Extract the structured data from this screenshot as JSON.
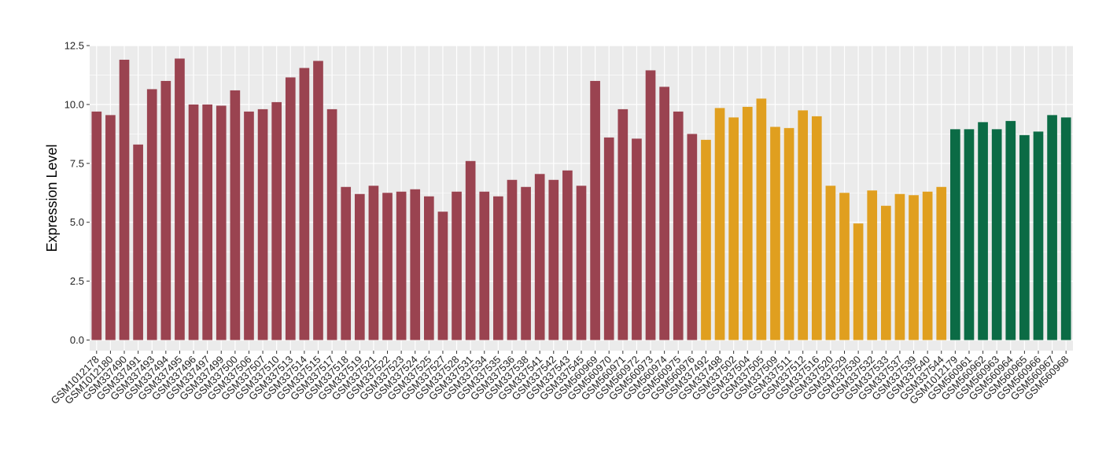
{
  "chart_data": {
    "type": "bar",
    "title": "",
    "xlabel": "",
    "ylabel": "Expression Level",
    "ylim": [
      0,
      12.5
    ],
    "yticks": [
      "0.0",
      "2.5",
      "5.0",
      "7.5",
      "10.0",
      "12.5"
    ],
    "grid": true,
    "legend": "none",
    "colors": {
      "group1": "#9a4350",
      "group2": "#e09f1f",
      "group3": "#0b6b45",
      "panel": "#ebebeb",
      "grid": "#ffffff"
    },
    "categories": [
      "GSM1012178",
      "GSM1012180",
      "GSM337490",
      "GSM337491",
      "GSM337493",
      "GSM337494",
      "GSM337495",
      "GSM337496",
      "GSM337497",
      "GSM337499",
      "GSM337500",
      "GSM337506",
      "GSM337507",
      "GSM337510",
      "GSM337513",
      "GSM337514",
      "GSM337515",
      "GSM337517",
      "GSM337518",
      "GSM337519",
      "GSM337521",
      "GSM337522",
      "GSM337523",
      "GSM337524",
      "GSM337525",
      "GSM337527",
      "GSM337528",
      "GSM337531",
      "GSM337534",
      "GSM337535",
      "GSM337536",
      "GSM337538",
      "GSM337541",
      "GSM337542",
      "GSM337543",
      "GSM337545",
      "GSM560969",
      "GSM560970",
      "GSM560971",
      "GSM560972",
      "GSM560973",
      "GSM560974",
      "GSM560975",
      "GSM560976",
      "GSM337492",
      "GSM337498",
      "GSM337502",
      "GSM337504",
      "GSM337505",
      "GSM337509",
      "GSM337511",
      "GSM337512",
      "GSM337516",
      "GSM337520",
      "GSM337529",
      "GSM337530",
      "GSM337532",
      "GSM337533",
      "GSM337537",
      "GSM337539",
      "GSM337540",
      "GSM337544",
      "GSM1012179",
      "GSM560961",
      "GSM560962",
      "GSM560963",
      "GSM560964",
      "GSM560965",
      "GSM560966",
      "GSM560967",
      "GSM560968"
    ],
    "values": [
      9.7,
      9.55,
      11.9,
      8.3,
      10.65,
      11.0,
      11.95,
      10.0,
      10.0,
      9.95,
      10.6,
      9.7,
      9.8,
      10.1,
      11.15,
      11.55,
      11.85,
      9.8,
      6.5,
      6.2,
      6.55,
      6.25,
      6.3,
      6.4,
      6.1,
      5.45,
      6.3,
      7.6,
      6.3,
      6.1,
      6.8,
      6.5,
      7.05,
      6.8,
      7.2,
      6.55,
      11.0,
      8.6,
      9.8,
      8.55,
      11.45,
      10.75,
      9.7,
      8.75,
      8.5,
      9.85,
      9.45,
      9.9,
      10.25,
      9.05,
      9.0,
      9.75,
      9.5,
      6.55,
      6.25,
      4.95,
      6.35,
      5.7,
      6.2,
      6.15,
      6.3,
      6.5,
      8.95,
      8.95,
      9.25,
      8.95,
      9.3,
      8.7,
      8.85,
      9.55,
      9.45
    ],
    "groups": [
      1,
      1,
      1,
      1,
      1,
      1,
      1,
      1,
      1,
      1,
      1,
      1,
      1,
      1,
      1,
      1,
      1,
      1,
      1,
      1,
      1,
      1,
      1,
      1,
      1,
      1,
      1,
      1,
      1,
      1,
      1,
      1,
      1,
      1,
      1,
      1,
      1,
      1,
      1,
      1,
      1,
      1,
      1,
      1,
      2,
      2,
      2,
      2,
      2,
      2,
      2,
      2,
      2,
      2,
      2,
      2,
      2,
      2,
      2,
      2,
      2,
      2,
      3,
      3,
      3,
      3,
      3,
      3,
      3,
      3,
      3
    ]
  }
}
